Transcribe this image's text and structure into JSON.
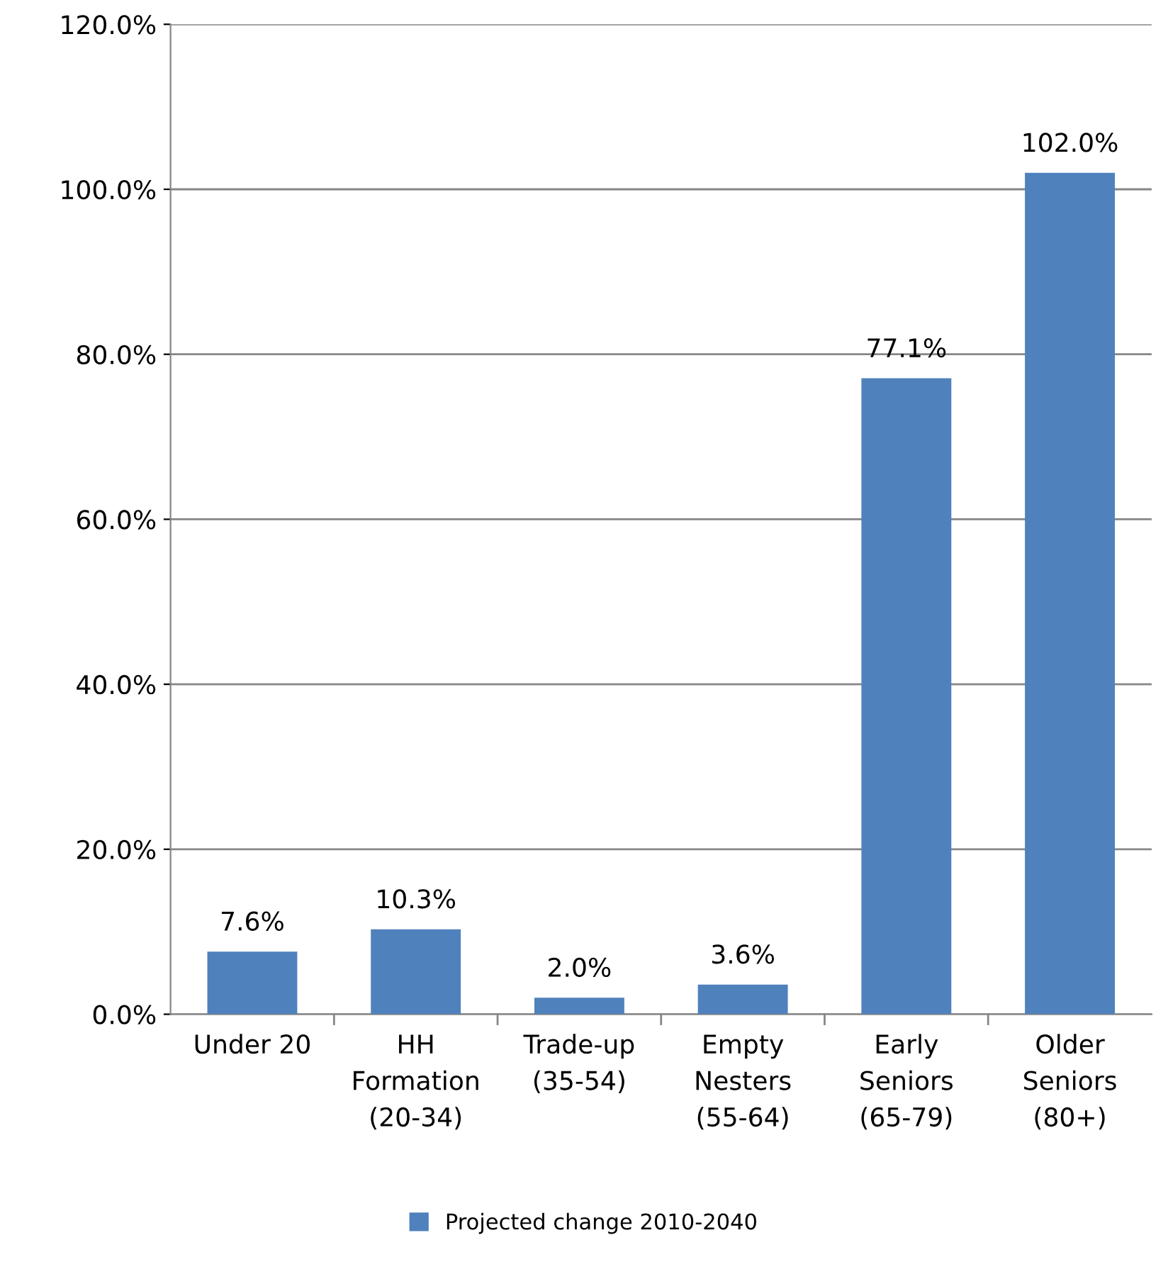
{
  "chart_data": {
    "type": "bar",
    "categories": [
      "Under 20",
      "HH\nFormation\n(20-34)",
      "Trade-up\n(35-54)",
      "Empty\nNesters\n(55-64)",
      "Early\nSeniors\n(65-79)",
      "Older\nSeniors\n(80+)"
    ],
    "series": [
      {
        "name": "Projected change 2010-2040",
        "color": "#4f81bd",
        "values": [
          7.6,
          10.3,
          2.0,
          3.6,
          77.1,
          102.0
        ],
        "value_labels": [
          "7.6%",
          "10.3%",
          "2.0%",
          "3.6%",
          "77.1%",
          "102.0%"
        ]
      }
    ],
    "ylim": [
      0,
      120
    ],
    "yticks": [
      {
        "value": 0,
        "label": "0.0%"
      },
      {
        "value": 20,
        "label": "20.0%"
      },
      {
        "value": 40,
        "label": "40.0%"
      },
      {
        "value": 60,
        "label": "60.0%"
      },
      {
        "value": 80,
        "label": "80.0%"
      },
      {
        "value": 100,
        "label": "100.0%"
      },
      {
        "value": 120,
        "label": "120.0%"
      }
    ],
    "grid": "y",
    "legend": "bottom"
  }
}
